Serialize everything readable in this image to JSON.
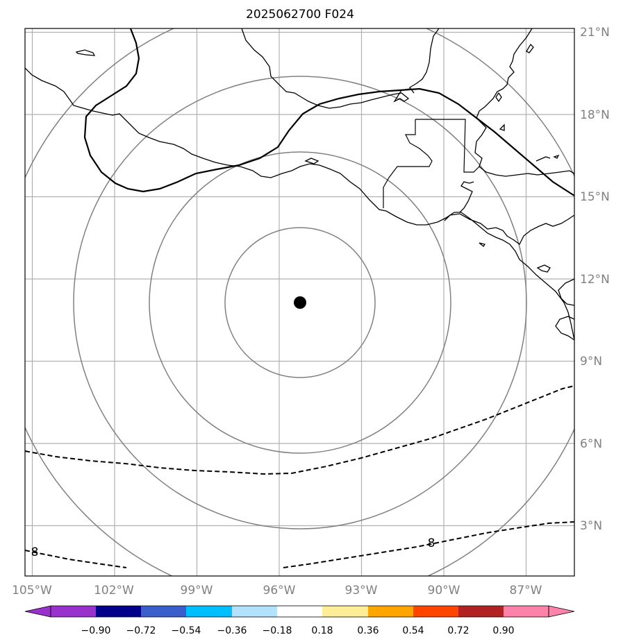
{
  "title": "2025062700 F024",
  "lon_labels": [
    "105°W",
    "102°W",
    "99°W",
    "96°W",
    "93°W",
    "90°W",
    "87°W"
  ],
  "lat_labels": [
    "21°N",
    "18°N",
    "15°N",
    "12°N",
    "9°N",
    "6°N",
    "3°N"
  ],
  "storm_center": {
    "lon": -95.3,
    "lat": 11.1
  },
  "range_rings_count": 4,
  "contour_labels": [
    "8",
    "8"
  ],
  "colorbar": {
    "colors": [
      "#9932CC",
      "#00008B",
      "#3A5FCD",
      "#00BFFF",
      "#B2E2FF",
      "#FFFFFF",
      "#FFEE99",
      "#FFA500",
      "#FF4500",
      "#B22222",
      "#FF82AB"
    ],
    "ticks": [
      "−0.90",
      "−0.72",
      "−0.54",
      "−0.36",
      "−0.18",
      "0.18",
      "0.36",
      "0.54",
      "0.72",
      "0.90"
    ]
  }
}
